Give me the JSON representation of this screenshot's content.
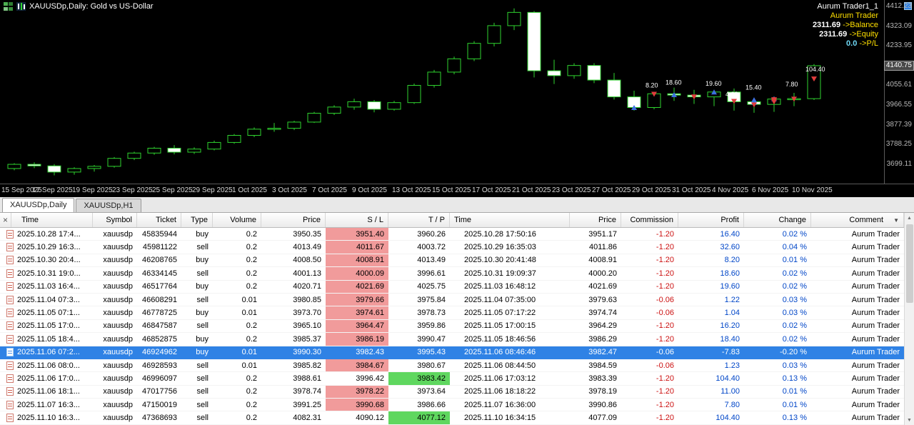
{
  "chart": {
    "title": "XAUUSDp,Daily:  Gold vs US-Dollar",
    "overlay": {
      "trader_id": "Aurum Trader1_1",
      "trader_name": "Aurum Trader",
      "balance_value": "2311.69",
      "balance_label": "->Balance",
      "equity_value": "2311.69",
      "equity_label": "->Equity",
      "pl_value": "0.0",
      "pl_label": "->P/L"
    },
    "current_price": "4140.75",
    "price_axis": [
      {
        "p": 4412.23,
        "label": "4412.23"
      },
      {
        "p": 4323.09,
        "label": "4323.09"
      },
      {
        "p": 4233.95,
        "label": "4233.95"
      },
      {
        "p": 4055.61,
        "label": "4055.61"
      },
      {
        "p": 3966.55,
        "label": "3966.55"
      },
      {
        "p": 3877.39,
        "label": "3877.39"
      },
      {
        "p": 3788.25,
        "label": "3788.25"
      },
      {
        "p": 3699.11,
        "label": "3699.11"
      }
    ]
  },
  "chart_data": {
    "type": "candlestick",
    "symbol": "XAUUSDp",
    "timeframe": "Daily",
    "description": "Gold vs US-Dollar",
    "ylim": [
      3608,
      4438
    ],
    "colors": {
      "up": "#2fd32f",
      "bull_fill": "#000000",
      "bear_fill": "#ffffff",
      "buy": "#3c6fe0",
      "sell": "#e03c3c",
      "background": "#000000"
    },
    "candles": [
      [
        3676,
        3700,
        3668,
        3695
      ],
      [
        3695,
        3704,
        3678,
        3688
      ],
      [
        3688,
        3696,
        3645,
        3660
      ],
      [
        3660,
        3682,
        3648,
        3676
      ],
      [
        3676,
        3692,
        3662,
        3686
      ],
      [
        3686,
        3728,
        3680,
        3722
      ],
      [
        3722,
        3752,
        3714,
        3746
      ],
      [
        3746,
        3774,
        3738,
        3768
      ],
      [
        3768,
        3782,
        3740,
        3750
      ],
      [
        3750,
        3772,
        3742,
        3764
      ],
      [
        3764,
        3802,
        3758,
        3794
      ],
      [
        3794,
        3832,
        3788,
        3826
      ],
      [
        3826,
        3862,
        3818,
        3854
      ],
      [
        3854,
        3882,
        3842,
        3858
      ],
      [
        3858,
        3892,
        3850,
        3886
      ],
      [
        3886,
        3932,
        3882,
        3926
      ],
      [
        3926,
        3962,
        3918,
        3954
      ],
      [
        3954,
        3992,
        3942,
        3978
      ],
      [
        3978,
        3986,
        3930,
        3944
      ],
      [
        3944,
        3982,
        3938,
        3974
      ],
      [
        3974,
        4060,
        3968,
        4052
      ],
      [
        4052,
        4122,
        4042,
        4112
      ],
      [
        4112,
        4182,
        4102,
        4172
      ],
      [
        4172,
        4252,
        4162,
        4242
      ],
      [
        4242,
        4335,
        4228,
        4322
      ],
      [
        4322,
        4400,
        4302,
        4382
      ],
      [
        4382,
        4388,
        4088,
        4118
      ],
      [
        4118,
        4168,
        4058,
        4096
      ],
      [
        4096,
        4152,
        4082,
        4142
      ],
      [
        4142,
        4152,
        4062,
        4076
      ],
      [
        4076,
        4108,
        3988,
        4000
      ],
      [
        4000,
        4028,
        3938,
        3952
      ],
      [
        3952,
        4022,
        3944,
        4014
      ],
      [
        4014,
        4042,
        3982,
        4008
      ],
      [
        4008,
        4032,
        3968,
        4000
      ],
      [
        4000,
        4032,
        3958,
        4022
      ],
      [
        4022,
        4038,
        3938,
        3978
      ],
      [
        3978,
        3992,
        3928,
        3966
      ],
      [
        3966,
        4002,
        3932,
        3990
      ],
      [
        3990,
        4018,
        3958,
        3992
      ],
      [
        3992,
        4148,
        3986,
        4141
      ]
    ],
    "x_ticks": [
      {
        "i": 0,
        "label": "15 Sep 2025"
      },
      {
        "i": 2,
        "label": "17 Sep 2025"
      },
      {
        "i": 4,
        "label": "19 Sep 2025"
      },
      {
        "i": 6,
        "label": "23 Sep 2025"
      },
      {
        "i": 8,
        "label": "25 Sep 2025"
      },
      {
        "i": 10,
        "label": "29 Sep 2025"
      },
      {
        "i": 12,
        "label": "1 Oct 2025"
      },
      {
        "i": 14,
        "label": "3 Oct 2025"
      },
      {
        "i": 16,
        "label": "7 Oct 2025"
      },
      {
        "i": 18,
        "label": "9 Oct 2025"
      },
      {
        "i": 20,
        "label": "13 Oct 2025"
      },
      {
        "i": 22,
        "label": "15 Oct 2025"
      },
      {
        "i": 24,
        "label": "17 Oct 2025"
      },
      {
        "i": 26,
        "label": "21 Oct 2025"
      },
      {
        "i": 28,
        "label": "23 Oct 2025"
      },
      {
        "i": 30,
        "label": "27 Oct 2025"
      },
      {
        "i": 32,
        "label": "29 Oct 2025"
      },
      {
        "i": 34,
        "label": "31 Oct 2025"
      },
      {
        "i": 36,
        "label": "4 Nov 2025"
      },
      {
        "i": 38,
        "label": "6 Nov 2025"
      },
      {
        "i": 40,
        "label": "10 Nov 2025"
      }
    ],
    "trade_markers": [
      {
        "i": 31,
        "p": 3950.35,
        "t": "buy"
      },
      {
        "i": 32,
        "p": 4013.49,
        "t": "sell"
      },
      {
        "i": 33,
        "p": 4008.5,
        "t": "buy"
      },
      {
        "i": 34,
        "p": 4001.13,
        "t": "sell"
      },
      {
        "i": 35,
        "p": 4020.71,
        "t": "buy"
      },
      {
        "i": 36,
        "p": 3980.85,
        "t": "sell"
      },
      {
        "i": 37,
        "p": 3973.7,
        "t": "buy"
      },
      {
        "i": 37,
        "p": 3965.1,
        "t": "sell"
      },
      {
        "i": 37,
        "p": 3985.37,
        "t": "buy"
      },
      {
        "i": 38,
        "p": 3990.3,
        "t": "buy"
      },
      {
        "i": 38,
        "p": 3985.82,
        "t": "sell"
      },
      {
        "i": 38,
        "p": 3988.61,
        "t": "sell"
      },
      {
        "i": 38,
        "p": 3978.74,
        "t": "sell"
      },
      {
        "i": 39,
        "p": 3991.25,
        "t": "sell"
      },
      {
        "i": 40,
        "p": 4082.31,
        "t": "sell"
      }
    ],
    "profit_labels": [
      {
        "i": 32,
        "p": 4042,
        "text": "8.20"
      },
      {
        "i": 33,
        "p": 4056,
        "text": "18.60"
      },
      {
        "i": 35,
        "p": 4050,
        "text": "19.60"
      },
      {
        "i": 36,
        "p": 4002,
        "text": "4.60"
      },
      {
        "i": 37,
        "p": 4032,
        "text": "15.40"
      },
      {
        "i": 39,
        "p": 4048,
        "text": "7.80"
      },
      {
        "i": 40,
        "p": 4115,
        "text": "104.40"
      }
    ]
  },
  "tabs": [
    {
      "label": "XAUUSDp,Daily",
      "active": true
    },
    {
      "label": "XAUUSDp,H1",
      "active": false
    }
  ],
  "table": {
    "close_label": "×",
    "columns": [
      "Time",
      "Symbol",
      "Ticket",
      "Type",
      "Volume",
      "Price",
      "S / L",
      "T / P",
      "Time",
      "Price",
      "Commission",
      "Profit",
      "Change",
      "Comment"
    ],
    "rows": [
      {
        "c": [
          "2025.10.28 17:4...",
          "xauusdp",
          "45835944",
          "buy",
          "0.2",
          "3950.35",
          "3951.40",
          "3960.26",
          "2025.10.28 17:50:16",
          "3951.17",
          "-1.20",
          "16.40",
          "0.02 %",
          "Aurum Trader"
        ],
        "sl": true,
        "tp": false,
        "sel": false
      },
      {
        "c": [
          "2025.10.29 16:3...",
          "xauusdp",
          "45981122",
          "sell",
          "0.2",
          "4013.49",
          "4011.67",
          "4003.72",
          "2025.10.29 16:35:03",
          "4011.86",
          "-1.20",
          "32.60",
          "0.04 %",
          "Aurum Trader"
        ],
        "sl": true,
        "tp": false,
        "sel": false
      },
      {
        "c": [
          "2025.10.30 20:4...",
          "xauusdp",
          "46208765",
          "buy",
          "0.2",
          "4008.50",
          "4008.91",
          "4013.49",
          "2025.10.30 20:41:48",
          "4008.91",
          "-1.20",
          "8.20",
          "0.01 %",
          "Aurum Trader"
        ],
        "sl": true,
        "tp": false,
        "sel": false
      },
      {
        "c": [
          "2025.10.31 19:0...",
          "xauusdp",
          "46334145",
          "sell",
          "0.2",
          "4001.13",
          "4000.09",
          "3996.61",
          "2025.10.31 19:09:37",
          "4000.20",
          "-1.20",
          "18.60",
          "0.02 %",
          "Aurum Trader"
        ],
        "sl": true,
        "tp": false,
        "sel": false
      },
      {
        "c": [
          "2025.11.03 16:4...",
          "xauusdp",
          "46517764",
          "buy",
          "0.2",
          "4020.71",
          "4021.69",
          "4025.75",
          "2025.11.03 16:48:12",
          "4021.69",
          "-1.20",
          "19.60",
          "0.02 %",
          "Aurum Trader"
        ],
        "sl": true,
        "tp": false,
        "sel": false
      },
      {
        "c": [
          "2025.11.04 07:3...",
          "xauusdp",
          "46608291",
          "sell",
          "0.01",
          "3980.85",
          "3979.66",
          "3975.84",
          "2025.11.04 07:35:00",
          "3979.63",
          "-0.06",
          "1.22",
          "0.03 %",
          "Aurum Trader"
        ],
        "sl": true,
        "tp": false,
        "sel": false
      },
      {
        "c": [
          "2025.11.05 07:1...",
          "xauusdp",
          "46778725",
          "buy",
          "0.01",
          "3973.70",
          "3974.61",
          "3978.73",
          "2025.11.05 07:17:22",
          "3974.74",
          "-0.06",
          "1.04",
          "0.03 %",
          "Aurum Trader"
        ],
        "sl": true,
        "tp": false,
        "sel": false
      },
      {
        "c": [
          "2025.11.05 17:0...",
          "xauusdp",
          "46847587",
          "sell",
          "0.2",
          "3965.10",
          "3964.47",
          "3959.86",
          "2025.11.05 17:00:15",
          "3964.29",
          "-1.20",
          "16.20",
          "0.02 %",
          "Aurum Trader"
        ],
        "sl": true,
        "tp": false,
        "sel": false
      },
      {
        "c": [
          "2025.11.05 18:4...",
          "xauusdp",
          "46852875",
          "buy",
          "0.2",
          "3985.37",
          "3986.19",
          "3990.47",
          "2025.11.05 18:46:56",
          "3986.29",
          "-1.20",
          "18.40",
          "0.02 %",
          "Aurum Trader"
        ],
        "sl": true,
        "tp": false,
        "sel": false
      },
      {
        "c": [
          "2025.11.06 07:2...",
          "xauusdp",
          "46924962",
          "buy",
          "0.01",
          "3990.30",
          "3982.43",
          "3995.43",
          "2025.11.06 08:46:46",
          "3982.47",
          "-0.06",
          "-7.83",
          "-0.20 %",
          "Aurum Trader"
        ],
        "sl": false,
        "tp": false,
        "sel": true
      },
      {
        "c": [
          "2025.11.06 08:0...",
          "xauusdp",
          "46928593",
          "sell",
          "0.01",
          "3985.82",
          "3984.67",
          "3980.67",
          "2025.11.06 08:44:50",
          "3984.59",
          "-0.06",
          "1.23",
          "0.03 %",
          "Aurum Trader"
        ],
        "sl": true,
        "tp": false,
        "sel": false
      },
      {
        "c": [
          "2025.11.06 17:0...",
          "xauusdp",
          "46996097",
          "sell",
          "0.2",
          "3988.61",
          "3996.42",
          "3983.42",
          "2025.11.06 17:03:12",
          "3983.39",
          "-1.20",
          "104.40",
          "0.13 %",
          "Aurum Trader"
        ],
        "sl": false,
        "tp": true,
        "sel": false
      },
      {
        "c": [
          "2025.11.06 18:1...",
          "xauusdp",
          "47017756",
          "sell",
          "0.2",
          "3978.74",
          "3978.22",
          "3973.64",
          "2025.11.06 18:18:22",
          "3978.19",
          "-1.20",
          "11.00",
          "0.01 %",
          "Aurum Trader"
        ],
        "sl": true,
        "tp": false,
        "sel": false
      },
      {
        "c": [
          "2025.11.07 16:3...",
          "xauusdp",
          "47150019",
          "sell",
          "0.2",
          "3991.25",
          "3990.68",
          "3986.66",
          "2025.11.07 16:36:00",
          "3990.86",
          "-1.20",
          "7.80",
          "0.01 %",
          "Aurum Trader"
        ],
        "sl": true,
        "tp": false,
        "sel": false
      },
      {
        "c": [
          "2025.11.10 16:3...",
          "xauusdp",
          "47368693",
          "sell",
          "0.2",
          "4082.31",
          "4090.12",
          "4077.12",
          "2025.11.10 16:34:15",
          "4077.09",
          "-1.20",
          "104.40",
          "0.13 %",
          "Aurum Trader"
        ],
        "sl": false,
        "tp": true,
        "sel": false
      }
    ]
  },
  "icons": {
    "scroll_up": "▲",
    "scroll_down": "▼",
    "comment_filter": "▼"
  }
}
